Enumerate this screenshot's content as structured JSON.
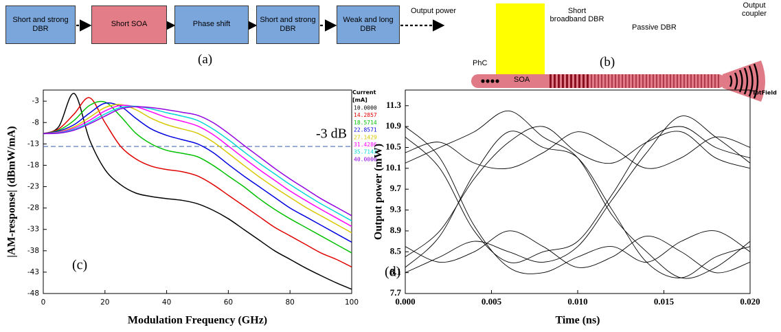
{
  "diagram_a": {
    "caption": "(a)",
    "output_label": "Output power",
    "blocks": [
      "Short and strong DBR",
      "Short SOA",
      "Phase shift",
      "Short and strong DBR",
      "Weak and long DBR"
    ]
  },
  "diagram_b": {
    "caption": "(b)",
    "labels": {
      "phc": "PhC",
      "soa": "SOA",
      "short_dbr": "Short broadband DBR",
      "passive_dbr": "Passive DBR",
      "coupler": "Output coupler"
    }
  },
  "chart_data": [
    {
      "type": "line",
      "panel_label": "(c)",
      "x_label": "Modulation Frequency (GHz)",
      "y_label": "|AM-response| (dBmW/mA)",
      "legend_title": "Current [mA]",
      "x": [
        0,
        5,
        10,
        15,
        20,
        25,
        30,
        35,
        40,
        45,
        50,
        55,
        60,
        65,
        70,
        75,
        80,
        85,
        90,
        95,
        100
      ],
      "xlim": [
        0,
        100
      ],
      "xticks": [
        0,
        20,
        40,
        60,
        80,
        100
      ],
      "ylim": [
        -48,
        -0.4
      ],
      "yticks": [
        -3,
        -8,
        -13,
        -18,
        -23,
        -28,
        -33,
        -38,
        -43,
        -48
      ],
      "reference_line": {
        "value": -13.6,
        "label": "-3 dB",
        "color": "#4a6fb5"
      },
      "series": [
        {
          "name": "10.0000",
          "color": "#000000",
          "values": [
            -10.6,
            -9,
            -1.2,
            -12,
            -19,
            -22.5,
            -24.5,
            -25.3,
            -25.8,
            -26.2,
            -27,
            -28.5,
            -30.5,
            -33,
            -35.5,
            -38,
            -40,
            -42,
            -43.8,
            -45.5,
            -47
          ]
        },
        {
          "name": "14.2857",
          "color": "#e00000",
          "values": [
            -10.6,
            -9.5,
            -6,
            -2.2,
            -8,
            -13.5,
            -16.5,
            -18.2,
            -19,
            -19.5,
            -20.5,
            -22.5,
            -25,
            -27.5,
            -30,
            -32.5,
            -34.5,
            -36.5,
            -38.5,
            -40,
            -41.8
          ]
        },
        {
          "name": "18.5714",
          "color": "#00c000",
          "values": [
            -10.6,
            -9.8,
            -7.5,
            -4,
            -3.2,
            -6.5,
            -10.5,
            -13,
            -14.5,
            -15.2,
            -16,
            -18,
            -20.5,
            -23,
            -25.8,
            -28.3,
            -30.5,
            -32.5,
            -34.5,
            -36.5,
            -38.5
          ]
        },
        {
          "name": "22.8571",
          "color": "#0000e0",
          "values": [
            -10.6,
            -10,
            -8.5,
            -5.8,
            -3.5,
            -4.2,
            -7,
            -9.5,
            -11,
            -12,
            -13,
            -15,
            -17.8,
            -20.5,
            -23,
            -25.5,
            -28,
            -30,
            -32,
            -34,
            -36
          ]
        },
        {
          "name": "27.1429",
          "color": "#d8c800",
          "values": [
            -10.6,
            -10.2,
            -9,
            -6.8,
            -4.5,
            -3.8,
            -5,
            -7,
            -8.5,
            -9.5,
            -10.5,
            -12.5,
            -15.2,
            -18,
            -20.7,
            -23.2,
            -25.5,
            -27.8,
            -29.8,
            -31.8,
            -33.8
          ]
        },
        {
          "name": "31.4286",
          "color": "#ff00ff",
          "values": [
            -10.6,
            -10.3,
            -9.3,
            -7.5,
            -5.3,
            -4,
            -4.3,
            -5.5,
            -6.8,
            -7.7,
            -8.8,
            -10.8,
            -13.5,
            -16.3,
            -19,
            -21.5,
            -24,
            -26.2,
            -28.3,
            -30.3,
            -32.3
          ]
        },
        {
          "name": "35.7143",
          "color": "#00d8d8",
          "values": [
            -10.6,
            -10.4,
            -9.6,
            -8,
            -6,
            -4.5,
            -4.2,
            -4.8,
            -5.7,
            -6.5,
            -7.5,
            -9.5,
            -12,
            -14.8,
            -17.5,
            -20,
            -22.5,
            -24.8,
            -27,
            -29,
            -31
          ]
        },
        {
          "name": "40.0000",
          "color": "#9000e0",
          "values": [
            -10.6,
            -10.5,
            -9.8,
            -8.3,
            -6.5,
            -4.8,
            -4.3,
            -4.5,
            -5,
            -5.6,
            -6.3,
            -8,
            -10.5,
            -13.3,
            -16,
            -18.7,
            -21.2,
            -23.5,
            -25.8,
            -27.8,
            -29.8
          ]
        }
      ]
    },
    {
      "type": "line",
      "panel_label": "(d)",
      "corner_label": "TotField",
      "x_label": "Time (ns)",
      "y_label": "Output power (mW)",
      "color": "#000000",
      "x": [
        0,
        0.002,
        0.004,
        0.006,
        0.008,
        0.01,
        0.012,
        0.014,
        0.016,
        0.018,
        0.02
      ],
      "xlim": [
        0,
        0.02
      ],
      "xticks": [
        {
          "value": 0,
          "label": "0.000"
        },
        {
          "value": 0.005,
          "label": "0.005"
        },
        {
          "value": 0.01,
          "label": "0.010"
        },
        {
          "value": 0.015,
          "label": "0.015"
        },
        {
          "value": 0.02,
          "label": "0.020"
        }
      ],
      "ylim": [
        7.7,
        11.6
      ],
      "yticks": [
        7.7,
        8.1,
        8.5,
        8.9,
        9.3,
        9.7,
        10.1,
        10.5,
        10.9,
        11.3
      ],
      "series": [
        {
          "values": [
            10.7,
            10.1,
            8.9,
            8.3,
            8.5,
            8.7,
            9.6,
            10.6,
            10.9,
            10.5,
            10.3
          ]
        },
        {
          "values": [
            8.2,
            8.8,
            10.0,
            10.8,
            10.5,
            10.3,
            9.3,
            8.3,
            8.0,
            8.4,
            8.6
          ]
        },
        {
          "values": [
            10.4,
            10.6,
            10.2,
            10.1,
            10.4,
            10.8,
            10.5,
            10.1,
            10.3,
            10.7,
            10.5
          ]
        },
        {
          "values": [
            8.6,
            8.3,
            8.5,
            8.9,
            8.6,
            8.2,
            8.4,
            8.8,
            8.5,
            8.1,
            8.3
          ]
        },
        {
          "values": [
            10.9,
            10.3,
            9.0,
            8.2,
            8.1,
            8.4,
            8.6,
            8.3,
            8.7,
            8.9,
            8.5
          ]
        },
        {
          "values": [
            8.4,
            8.9,
            9.9,
            10.6,
            10.9,
            10.4,
            10.2,
            10.6,
            10.8,
            10.3,
            10.1
          ]
        },
        {
          "values": [
            8.1,
            8.4,
            8.7,
            8.5,
            8.3,
            8.6,
            9.5,
            10.4,
            11.1,
            10.7,
            10.2
          ]
        },
        {
          "values": [
            10.2,
            10.5,
            10.8,
            11.2,
            10.7,
            10.3,
            9.2,
            8.5,
            8.0,
            8.2,
            8.7
          ]
        }
      ]
    }
  ]
}
